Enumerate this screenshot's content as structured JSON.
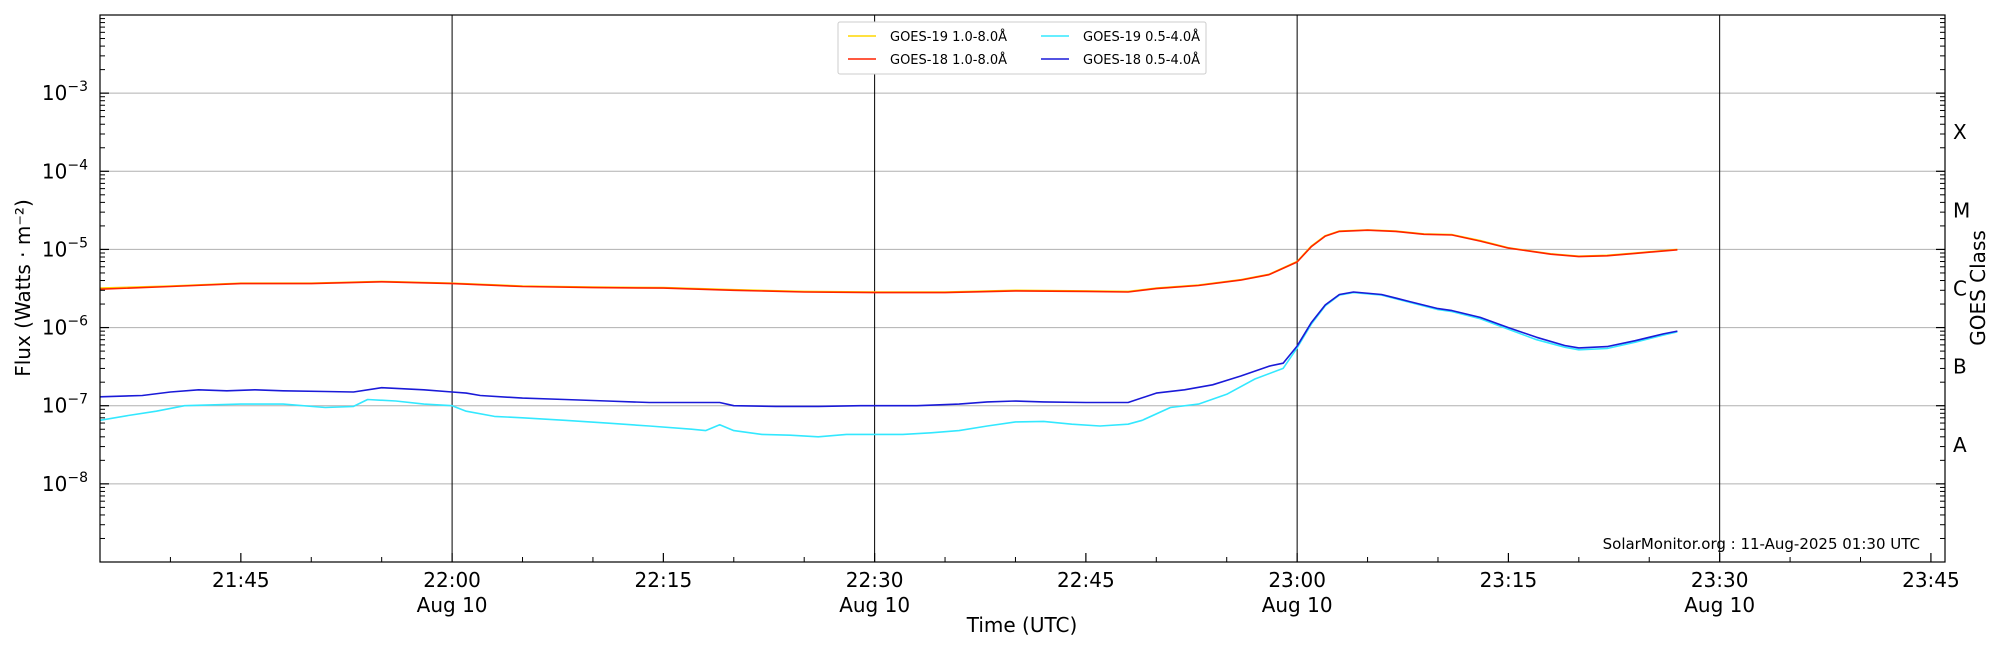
{
  "chart_data": {
    "type": "line",
    "title": "",
    "xlabel": "Time (UTC)",
    "ylabel": "Flux (Watts · m⁻²)",
    "ylabel_right": "GOES Class",
    "yscale": "log",
    "ylim": [
      1e-09,
      0.01
    ],
    "xlim": [
      "21:35",
      "23:46"
    ],
    "grid": "horizontal at decades; vertical at each half hour",
    "y_ticks": [
      {
        "exp": -8,
        "label": "10",
        "sup": "−8"
      },
      {
        "exp": -7,
        "label": "10",
        "sup": "−7"
      },
      {
        "exp": -6,
        "label": "10",
        "sup": "−6"
      },
      {
        "exp": -5,
        "label": "10",
        "sup": "−5"
      },
      {
        "exp": -4,
        "label": "10",
        "sup": "−4"
      },
      {
        "exp": -3,
        "label": "10",
        "sup": "−3"
      }
    ],
    "x_ticks": [
      {
        "t": "21:45",
        "label": "21:45",
        "sub": ""
      },
      {
        "t": "22:00",
        "label": "22:00",
        "sub": "Aug 10"
      },
      {
        "t": "22:15",
        "label": "22:15",
        "sub": ""
      },
      {
        "t": "22:30",
        "label": "22:30",
        "sub": "Aug 10"
      },
      {
        "t": "22:45",
        "label": "22:45",
        "sub": ""
      },
      {
        "t": "23:00",
        "label": "23:00",
        "sub": "Aug 10"
      },
      {
        "t": "23:15",
        "label": "23:15",
        "sub": ""
      },
      {
        "t": "23:30",
        "label": "23:30",
        "sub": "Aug 10"
      },
      {
        "t": "23:45",
        "label": "23:45",
        "sub": ""
      }
    ],
    "class_labels": [
      {
        "exp": -3.5,
        "label": "X"
      },
      {
        "exp": -4.5,
        "label": "M"
      },
      {
        "exp": -5.5,
        "label": "C"
      },
      {
        "exp": -6.5,
        "label": "B"
      },
      {
        "exp": -7.5,
        "label": "A"
      }
    ],
    "legend_position": "top-center",
    "credit": "SolarMonitor.org : 11-Aug-2025 01:30 UTC",
    "series": [
      {
        "name": "GOES-19 1.0-8.0Å",
        "color": "#ffd700",
        "points": [
          [
            "21:35",
            3.2e-06
          ],
          [
            "21:40",
            3.4e-06
          ],
          [
            "21:45",
            3.7e-06
          ],
          [
            "21:50",
            3.7e-06
          ],
          [
            "21:55",
            3.9e-06
          ],
          [
            "22:00",
            3.7e-06
          ],
          [
            "22:05",
            3.4e-06
          ],
          [
            "22:10",
            3.3e-06
          ],
          [
            "22:15",
            3.25e-06
          ],
          [
            "22:20",
            3.05e-06
          ],
          [
            "22:25",
            2.9e-06
          ],
          [
            "22:30",
            2.85e-06
          ],
          [
            "22:35",
            2.85e-06
          ],
          [
            "22:40",
            3e-06
          ],
          [
            "22:45",
            2.95e-06
          ],
          [
            "22:48",
            2.9e-06
          ],
          [
            "22:50",
            3.2e-06
          ],
          [
            "22:53",
            3.5e-06
          ],
          [
            "22:56",
            4.1e-06
          ],
          [
            "22:58",
            4.8e-06
          ],
          [
            "23:00",
            7e-06
          ],
          [
            "23:01",
            1.1e-05
          ],
          [
            "23:02",
            1.5e-05
          ],
          [
            "23:03",
            1.72e-05
          ],
          [
            "23:05",
            1.78e-05
          ],
          [
            "23:07",
            1.72e-05
          ],
          [
            "23:09",
            1.58e-05
          ],
          [
            "23:11",
            1.55e-05
          ],
          [
            "23:13",
            1.3e-05
          ],
          [
            "23:15",
            1.05e-05
          ],
          [
            "23:18",
            8.8e-06
          ],
          [
            "23:20",
            8.2e-06
          ],
          [
            "23:22",
            8.4e-06
          ],
          [
            "23:24",
            9e-06
          ],
          [
            "23:27",
            1e-05
          ]
        ]
      },
      {
        "name": "GOES-18 1.0-8.0Å",
        "color": "#ff2200",
        "points": [
          [
            "21:35",
            3.1e-06
          ],
          [
            "21:40",
            3.35e-06
          ],
          [
            "21:45",
            3.65e-06
          ],
          [
            "21:50",
            3.65e-06
          ],
          [
            "21:55",
            3.85e-06
          ],
          [
            "22:00",
            3.65e-06
          ],
          [
            "22:05",
            3.35e-06
          ],
          [
            "22:10",
            3.25e-06
          ],
          [
            "22:15",
            3.2e-06
          ],
          [
            "22:20",
            3e-06
          ],
          [
            "22:25",
            2.85e-06
          ],
          [
            "22:30",
            2.8e-06
          ],
          [
            "22:35",
            2.8e-06
          ],
          [
            "22:40",
            2.95e-06
          ],
          [
            "22:45",
            2.9e-06
          ],
          [
            "22:48",
            2.85e-06
          ],
          [
            "22:50",
            3.15e-06
          ],
          [
            "22:53",
            3.45e-06
          ],
          [
            "22:56",
            4.05e-06
          ],
          [
            "22:58",
            4.75e-06
          ],
          [
            "23:00",
            6.9e-06
          ],
          [
            "23:01",
            1.08e-05
          ],
          [
            "23:02",
            1.48e-05
          ],
          [
            "23:03",
            1.7e-05
          ],
          [
            "23:05",
            1.76e-05
          ],
          [
            "23:07",
            1.7e-05
          ],
          [
            "23:09",
            1.56e-05
          ],
          [
            "23:11",
            1.53e-05
          ],
          [
            "23:13",
            1.28e-05
          ],
          [
            "23:15",
            1.04e-05
          ],
          [
            "23:18",
            8.7e-06
          ],
          [
            "23:20",
            8.1e-06
          ],
          [
            "23:22",
            8.3e-06
          ],
          [
            "23:24",
            8.9e-06
          ],
          [
            "23:27",
            9.9e-06
          ]
        ]
      },
      {
        "name": "GOES-19 0.5-4.0Å",
        "color": "#33e8ff",
        "points": [
          [
            "21:35",
            6.5e-08
          ],
          [
            "21:37",
            7.5e-08
          ],
          [
            "21:39",
            8.5e-08
          ],
          [
            "21:41",
            1e-07
          ],
          [
            "21:45",
            1.05e-07
          ],
          [
            "21:48",
            1.05e-07
          ],
          [
            "21:51",
            9.5e-08
          ],
          [
            "21:53",
            9.8e-08
          ],
          [
            "21:54",
            1.2e-07
          ],
          [
            "21:56",
            1.15e-07
          ],
          [
            "21:58",
            1.05e-07
          ],
          [
            "22:00",
            1e-07
          ],
          [
            "22:01",
            8.5e-08
          ],
          [
            "22:03",
            7.3e-08
          ],
          [
            "22:05",
            7e-08
          ],
          [
            "22:08",
            6.5e-08
          ],
          [
            "22:11",
            6e-08
          ],
          [
            "22:14",
            5.5e-08
          ],
          [
            "22:17",
            5e-08
          ],
          [
            "22:18",
            4.8e-08
          ],
          [
            "22:19",
            5.7e-08
          ],
          [
            "22:20",
            4.8e-08
          ],
          [
            "22:22",
            4.3e-08
          ],
          [
            "22:24",
            4.2e-08
          ],
          [
            "22:26",
            4e-08
          ],
          [
            "22:28",
            4.3e-08
          ],
          [
            "22:30",
            4.3e-08
          ],
          [
            "22:32",
            4.3e-08
          ],
          [
            "22:34",
            4.5e-08
          ],
          [
            "22:36",
            4.8e-08
          ],
          [
            "22:38",
            5.5e-08
          ],
          [
            "22:40",
            6.2e-08
          ],
          [
            "22:42",
            6.3e-08
          ],
          [
            "22:44",
            5.8e-08
          ],
          [
            "22:46",
            5.5e-08
          ],
          [
            "22:48",
            5.8e-08
          ],
          [
            "22:49",
            6.5e-08
          ],
          [
            "22:51",
            9.5e-08
          ],
          [
            "22:53",
            1.05e-07
          ],
          [
            "22:55",
            1.4e-07
          ],
          [
            "22:57",
            2.2e-07
          ],
          [
            "22:59",
            3e-07
          ],
          [
            "23:00",
            5.5e-07
          ],
          [
            "23:01",
            1.1e-06
          ],
          [
            "23:02",
            1.9e-06
          ],
          [
            "23:03",
            2.6e-06
          ],
          [
            "23:04",
            2.8e-06
          ],
          [
            "23:06",
            2.6e-06
          ],
          [
            "23:08",
            2.1e-06
          ],
          [
            "23:10",
            1.7e-06
          ],
          [
            "23:11",
            1.6e-06
          ],
          [
            "23:13",
            1.3e-06
          ],
          [
            "23:15",
            9.5e-07
          ],
          [
            "23:17",
            7e-07
          ],
          [
            "23:19",
            5.6e-07
          ],
          [
            "23:20",
            5.2e-07
          ],
          [
            "23:22",
            5.4e-07
          ],
          [
            "23:24",
            6.5e-07
          ],
          [
            "23:26",
            8e-07
          ],
          [
            "23:27",
            8.8e-07
          ]
        ]
      },
      {
        "name": "GOES-18 0.5-4.0Å",
        "color": "#1a1ad8",
        "points": [
          [
            "21:35",
            1.3e-07
          ],
          [
            "21:38",
            1.35e-07
          ],
          [
            "21:40",
            1.5e-07
          ],
          [
            "21:42",
            1.6e-07
          ],
          [
            "21:44",
            1.55e-07
          ],
          [
            "21:46",
            1.6e-07
          ],
          [
            "21:48",
            1.55e-07
          ],
          [
            "21:51",
            1.52e-07
          ],
          [
            "21:53",
            1.5e-07
          ],
          [
            "21:55",
            1.7e-07
          ],
          [
            "21:58",
            1.6e-07
          ],
          [
            "22:00",
            1.5e-07
          ],
          [
            "22:01",
            1.45e-07
          ],
          [
            "22:02",
            1.35e-07
          ],
          [
            "22:05",
            1.25e-07
          ],
          [
            "22:08",
            1.2e-07
          ],
          [
            "22:11",
            1.15e-07
          ],
          [
            "22:14",
            1.1e-07
          ],
          [
            "22:17",
            1.1e-07
          ],
          [
            "22:19",
            1.1e-07
          ],
          [
            "22:20",
            1e-07
          ],
          [
            "22:23",
            9.8e-08
          ],
          [
            "22:26",
            9.8e-08
          ],
          [
            "22:29",
            1e-07
          ],
          [
            "22:31",
            1e-07
          ],
          [
            "22:33",
            1e-07
          ],
          [
            "22:36",
            1.05e-07
          ],
          [
            "22:38",
            1.12e-07
          ],
          [
            "22:40",
            1.15e-07
          ],
          [
            "22:42",
            1.12e-07
          ],
          [
            "22:45",
            1.1e-07
          ],
          [
            "22:48",
            1.1e-07
          ],
          [
            "22:50",
            1.45e-07
          ],
          [
            "22:52",
            1.6e-07
          ],
          [
            "22:54",
            1.85e-07
          ],
          [
            "22:56",
            2.4e-07
          ],
          [
            "22:58",
            3.2e-07
          ],
          [
            "22:59",
            3.5e-07
          ],
          [
            "23:00",
            5.8e-07
          ],
          [
            "23:01",
            1.15e-06
          ],
          [
            "23:02",
            1.95e-06
          ],
          [
            "23:03",
            2.65e-06
          ],
          [
            "23:04",
            2.85e-06
          ],
          [
            "23:06",
            2.65e-06
          ],
          [
            "23:08",
            2.15e-06
          ],
          [
            "23:10",
            1.75e-06
          ],
          [
            "23:11",
            1.65e-06
          ],
          [
            "23:13",
            1.35e-06
          ],
          [
            "23:15",
            1e-06
          ],
          [
            "23:17",
            7.5e-07
          ],
          [
            "23:19",
            5.9e-07
          ],
          [
            "23:20",
            5.5e-07
          ],
          [
            "23:22",
            5.7e-07
          ],
          [
            "23:24",
            6.8e-07
          ],
          [
            "23:26",
            8.3e-07
          ],
          [
            "23:27",
            9e-07
          ]
        ]
      }
    ]
  }
}
